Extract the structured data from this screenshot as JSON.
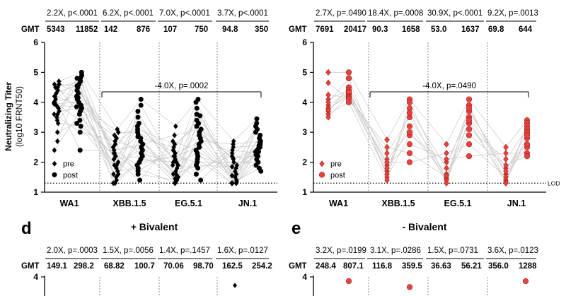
{
  "chart_data": [
    {
      "type": "scatter",
      "panel": "top-left",
      "title": "",
      "ylabel": "Neutralizing Titer",
      "ylabel2": "(log10 FRNT50)",
      "gmt_label": "GMT",
      "ylim": [
        1,
        6
      ],
      "yticks": [
        "1",
        "2",
        "3",
        "4",
        "5",
        "6"
      ],
      "categories": [
        "WA1",
        "XBB.1.5",
        "EG.5.1",
        "JN.1"
      ],
      "fold_labels": [
        "2.2X, p<.0001",
        "6.2X, p<.0001",
        "7.0X, p<.0001",
        "3.7X, p<.0001"
      ],
      "gmt": [
        [
          "5343",
          "11852"
        ],
        [
          "142",
          "876"
        ],
        [
          "107",
          "750"
        ],
        [
          "94.8",
          "350"
        ]
      ],
      "bracket": {
        "label": "-4.0X, p=.0002",
        "from": 0,
        "to": 3,
        "y": 4.35
      },
      "lod": {
        "value": 1.3,
        "label": "LOD"
      },
      "legend": {
        "pre": "pre",
        "post": "post",
        "position": "bottom-left"
      },
      "marker_color": "#000000",
      "series": [
        {
          "name": "pre",
          "values": [
            [
              4.7,
              4.6,
              4.5,
              4.4,
              4.3,
              4.2,
              4.2,
              4.1,
              4.0,
              4.0,
              3.9,
              3.8,
              3.7,
              3.6,
              3.5,
              3.4,
              3.3,
              3.0,
              2.7,
              2.4,
              4.6,
              4.5,
              3.95,
              3.6
            ],
            [
              3.1,
              3.0,
              2.8,
              2.6,
              2.5,
              2.4,
              2.4,
              2.3,
              2.2,
              2.1,
              2.0,
              1.9,
              1.8,
              1.7,
              1.6,
              1.5,
              1.4,
              1.3,
              2.9,
              2.7,
              2.3,
              1.9,
              1.6,
              1.3
            ],
            [
              3.2,
              2.9,
              2.7,
              2.5,
              2.4,
              2.3,
              2.2,
              2.1,
              2.0,
              2.0,
              1.9,
              1.8,
              1.7,
              1.6,
              1.5,
              1.4,
              1.35,
              1.3,
              2.6,
              2.2,
              1.9,
              1.6,
              1.45,
              1.3
            ],
            [
              2.7,
              2.6,
              2.4,
              2.3,
              2.2,
              2.1,
              2.0,
              1.9,
              1.8,
              1.7,
              1.6,
              1.5,
              1.4,
              1.35,
              1.3,
              2.5,
              2.15,
              1.85,
              1.55,
              1.3,
              1.3,
              1.3,
              1.3,
              1.3
            ]
          ]
        },
        {
          "name": "post",
          "values": [
            [
              5.0,
              4.9,
              4.8,
              4.7,
              4.6,
              4.5,
              4.4,
              4.3,
              4.2,
              4.1,
              4.0,
              3.9,
              3.8,
              3.7,
              3.6,
              3.4,
              3.2,
              3.0,
              2.4,
              4.8,
              4.55,
              4.15,
              3.85,
              3.3
            ],
            [
              4.1,
              3.9,
              3.7,
              3.5,
              3.3,
              3.2,
              3.1,
              3.0,
              2.9,
              2.8,
              2.7,
              2.6,
              2.5,
              2.4,
              2.3,
              2.2,
              2.1,
              2.0,
              1.9,
              1.8,
              1.7,
              1.6,
              1.4,
              2.85
            ],
            [
              4.1,
              4.0,
              3.8,
              3.6,
              3.4,
              3.3,
              3.2,
              3.1,
              3.0,
              2.9,
              2.8,
              2.7,
              2.6,
              2.5,
              2.4,
              2.3,
              2.2,
              2.1,
              2.0,
              1.9,
              1.8,
              1.6,
              1.4,
              3.55
            ],
            [
              3.45,
              3.3,
              3.2,
              3.1,
              3.0,
              2.9,
              2.8,
              2.7,
              2.6,
              2.55,
              2.5,
              2.45,
              2.4,
              2.35,
              2.3,
              2.25,
              2.2,
              2.1,
              2.0,
              1.9,
              1.8,
              1.7,
              2.65,
              2.35
            ]
          ]
        }
      ]
    },
    {
      "type": "scatter",
      "panel": "top-right",
      "title": "",
      "gmt_label": "GMT",
      "ylim": [
        1,
        6
      ],
      "yticks": [
        "1",
        "2",
        "3",
        "4",
        "5",
        "6"
      ],
      "categories": [
        "WA1",
        "XBB.1.5",
        "EG.5.1",
        "JN.1"
      ],
      "fold_labels": [
        "2.7X, p=.0490",
        "18.4X, p=.0008",
        "30.9X, p<.0001",
        "9.2X, p=.0013"
      ],
      "gmt": [
        [
          "7691",
          "20417"
        ],
        [
          "90.3",
          "1658"
        ],
        [
          "53.0",
          "1637"
        ],
        [
          "69.8",
          "644"
        ]
      ],
      "bracket": {
        "label": "-4.0X, p=.0490",
        "from": 0,
        "to": 3,
        "y": 4.35
      },
      "lod": {
        "value": 1.3,
        "label": "LOD"
      },
      "legend": {
        "pre": "pre",
        "post": "post",
        "position": "bottom-left"
      },
      "marker_color": "#e8423f",
      "series": [
        {
          "name": "pre",
          "values": [
            [
              5.0,
              4.25,
              4.1,
              3.9,
              3.8,
              3.7,
              3.6,
              3.5,
              4.0,
              4.65,
              3.75
            ],
            [
              2.75,
              2.5,
              2.3,
              2.1,
              1.9,
              1.7,
              1.6,
              1.5,
              1.4,
              2.0,
              1.8
            ],
            [
              2.6,
              2.3,
              2.0,
              1.8,
              1.6,
              1.5,
              1.45,
              1.4,
              1.3,
              2.1,
              1.55
            ],
            [
              2.5,
              2.3,
              2.1,
              1.8,
              1.6,
              1.5,
              1.4,
              1.35,
              1.3,
              1.9,
              1.7
            ]
          ]
        },
        {
          "name": "post",
          "values": [
            [
              5.0,
              4.8,
              4.5,
              4.4,
              4.3,
              4.25,
              4.2,
              4.15,
              4.1,
              4.0,
              4.35
            ],
            [
              4.1,
              4.0,
              3.8,
              3.5,
              3.2,
              2.9,
              2.6,
              2.3,
              2.0,
              3.65,
              3.0
            ],
            [
              4.1,
              3.9,
              3.7,
              3.5,
              3.3,
              3.1,
              2.9,
              2.6,
              2.2,
              3.4,
              3.8
            ],
            [
              3.4,
              3.3,
              3.2,
              3.1,
              3.0,
              2.8,
              2.5,
              2.3,
              2.2,
              2.9,
              2.6
            ]
          ]
        }
      ]
    },
    {
      "type": "scatter",
      "panel": "d",
      "panel_letter": "d",
      "title": "+ Bivalent",
      "gmt_label": "GMT",
      "ylim": [
        3,
        4
      ],
      "yticks": [
        "4"
      ],
      "fold_labels": [
        "2.0X, p=.0003",
        "1.5X, p=.0056",
        "1.4X, p=.1457",
        "1.6X, p=.0127"
      ],
      "gmt": [
        [
          "149.1",
          "298.2"
        ],
        [
          "68.82",
          "100.7"
        ],
        [
          "70.06",
          "98.70"
        ],
        [
          "162.5",
          "254.2"
        ]
      ],
      "marker_color": "#000000",
      "visible_points": [
        {
          "group": 3,
          "series": "post",
          "value": 3.9
        }
      ]
    },
    {
      "type": "scatter",
      "panel": "e",
      "panel_letter": "e",
      "title": "- Bivalent",
      "gmt_label": "GMT",
      "ylim": [
        3,
        4
      ],
      "yticks": [
        "4"
      ],
      "fold_labels": [
        "3.2X, p=.0199",
        "3.1X, p=.0286",
        "1.5X, p=.0731",
        "3.6X, p=.0123"
      ],
      "gmt": [
        [
          "248.4",
          "807.1"
        ],
        [
          "116.8",
          "359.5"
        ],
        [
          "36.63",
          "56.21"
        ],
        [
          "356.0",
          "1288"
        ]
      ],
      "marker_color": "#e8423f",
      "visible_points": [
        {
          "group": 0,
          "series": "post",
          "value": 3.95
        },
        {
          "group": 1,
          "series": "post",
          "value": 3.88
        },
        {
          "group": 3,
          "series": "post",
          "value": 3.95
        }
      ]
    }
  ]
}
